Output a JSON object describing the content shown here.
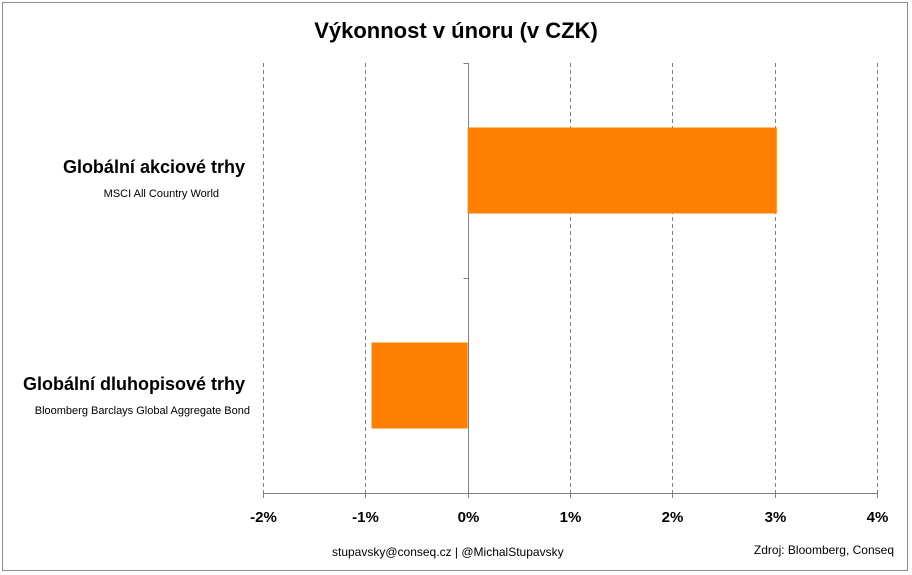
{
  "chart_data": {
    "type": "bar",
    "orientation": "horizontal",
    "title": "Výkonnost v únoru (v CZK)",
    "categories": [
      {
        "label": "Globální akciové trhy",
        "sublabel": "MSCI All Country World"
      },
      {
        "label": "Globální dluhopisové trhy",
        "sublabel": "Bloomberg Barclays Global Aggregate Bond"
      }
    ],
    "values": [
      3.02,
      -0.94
    ],
    "xlim": [
      -2,
      4
    ],
    "xticks": [
      -2,
      -1,
      0,
      1,
      2,
      3,
      4
    ],
    "xtick_labels": [
      "-2%",
      "-1%",
      "0%",
      "1%",
      "2%",
      "3%",
      "4%"
    ],
    "grid": "vertical dashed",
    "bar_color": "#ff8000",
    "legend": "none"
  },
  "footer": {
    "contact": "stupavsky@conseq.cz  |  @MichalStupavsky",
    "source": "Zdroj: Bloomberg, Conseq"
  }
}
